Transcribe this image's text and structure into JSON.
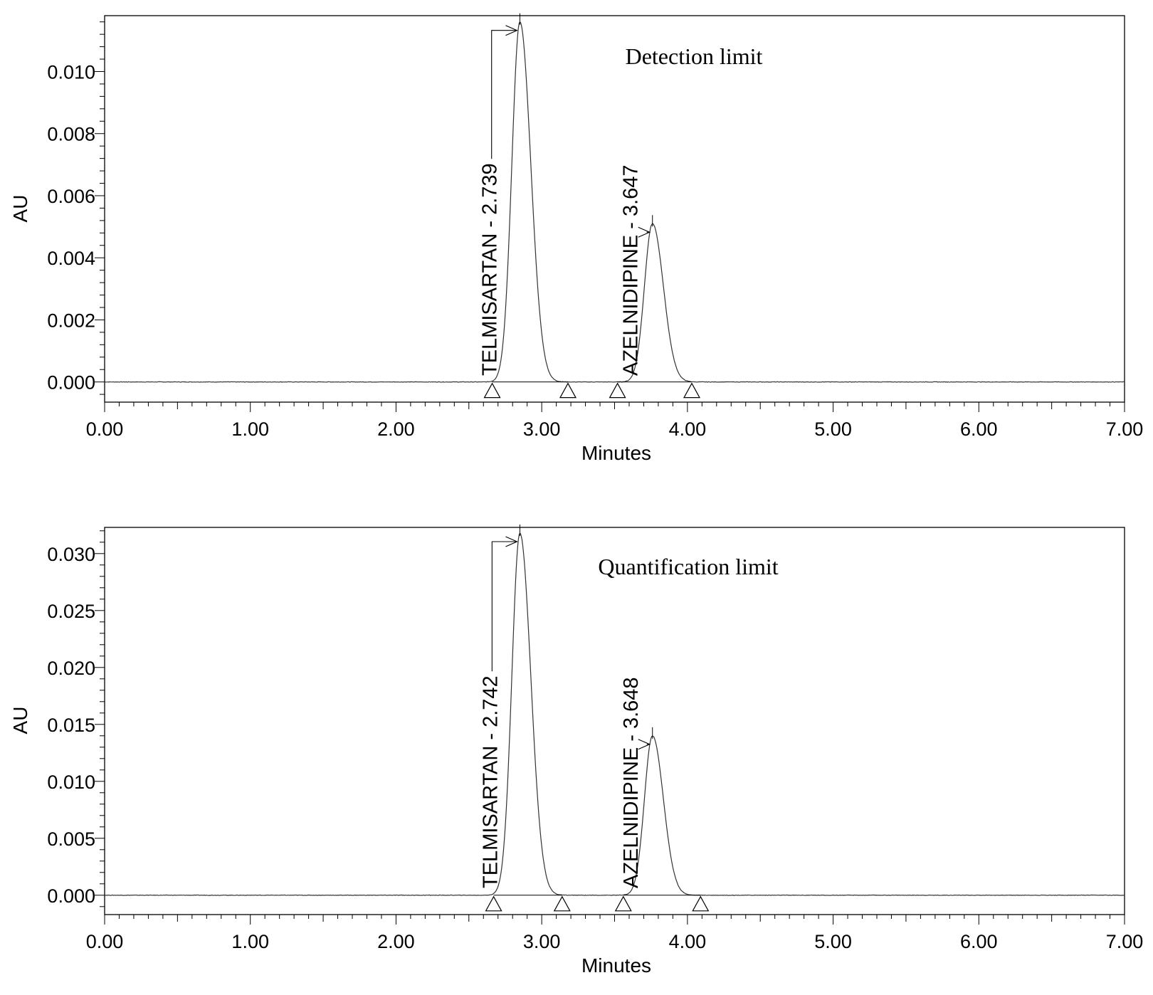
{
  "chart_data": [
    {
      "type": "line",
      "title": "Detection limit",
      "xlabel": "Minutes",
      "ylabel": "AU",
      "xlim": [
        0.0,
        7.0
      ],
      "ylim": [
        -0.00065,
        0.0118
      ],
      "xticks": [
        "0.00",
        "1.00",
        "2.00",
        "3.00",
        "4.00",
        "5.00",
        "6.00",
        "7.00"
      ],
      "yticks": [
        "0.000",
        "0.002",
        "0.004",
        "0.006",
        "0.008",
        "0.010"
      ],
      "grid": false,
      "peaks": [
        {
          "name": "TELMISARTAN",
          "retention_time": 2.739,
          "label": "TELMISARTAN - 2.739",
          "apex_x": 2.85,
          "height": 0.0116,
          "sigma_left": 0.055,
          "sigma_right": 0.075,
          "start": 2.66,
          "end": 3.18
        },
        {
          "name": "AZELNIDIPINE",
          "retention_time": 3.647,
          "label": "AZELNIDIPINE - 3.647",
          "apex_x": 3.76,
          "height": 0.0051,
          "sigma_left": 0.055,
          "sigma_right": 0.075,
          "start": 3.52,
          "end": 4.03
        }
      ]
    },
    {
      "type": "line",
      "title": "Quantification limit",
      "xlabel": "Minutes",
      "ylabel": "AU",
      "xlim": [
        0.0,
        7.0
      ],
      "ylim": [
        -0.0017,
        0.0323
      ],
      "xticks": [
        "0.00",
        "1.00",
        "2.00",
        "3.00",
        "4.00",
        "5.00",
        "6.00",
        "7.00"
      ],
      "yticks": [
        "0.000",
        "0.005",
        "0.010",
        "0.015",
        "0.020",
        "0.025",
        "0.030"
      ],
      "grid": false,
      "peaks": [
        {
          "name": "TELMISARTAN",
          "retention_time": 2.742,
          "label": "TELMISARTAN - 2.742",
          "apex_x": 2.85,
          "height": 0.0318,
          "sigma_left": 0.055,
          "sigma_right": 0.075,
          "start": 2.67,
          "end": 3.14
        },
        {
          "name": "AZELNIDIPINE",
          "retention_time": 3.648,
          "label": "AZELNIDIPINE - 3.648",
          "apex_x": 3.76,
          "height": 0.014,
          "sigma_left": 0.055,
          "sigma_right": 0.075,
          "start": 3.56,
          "end": 4.09
        }
      ]
    }
  ]
}
